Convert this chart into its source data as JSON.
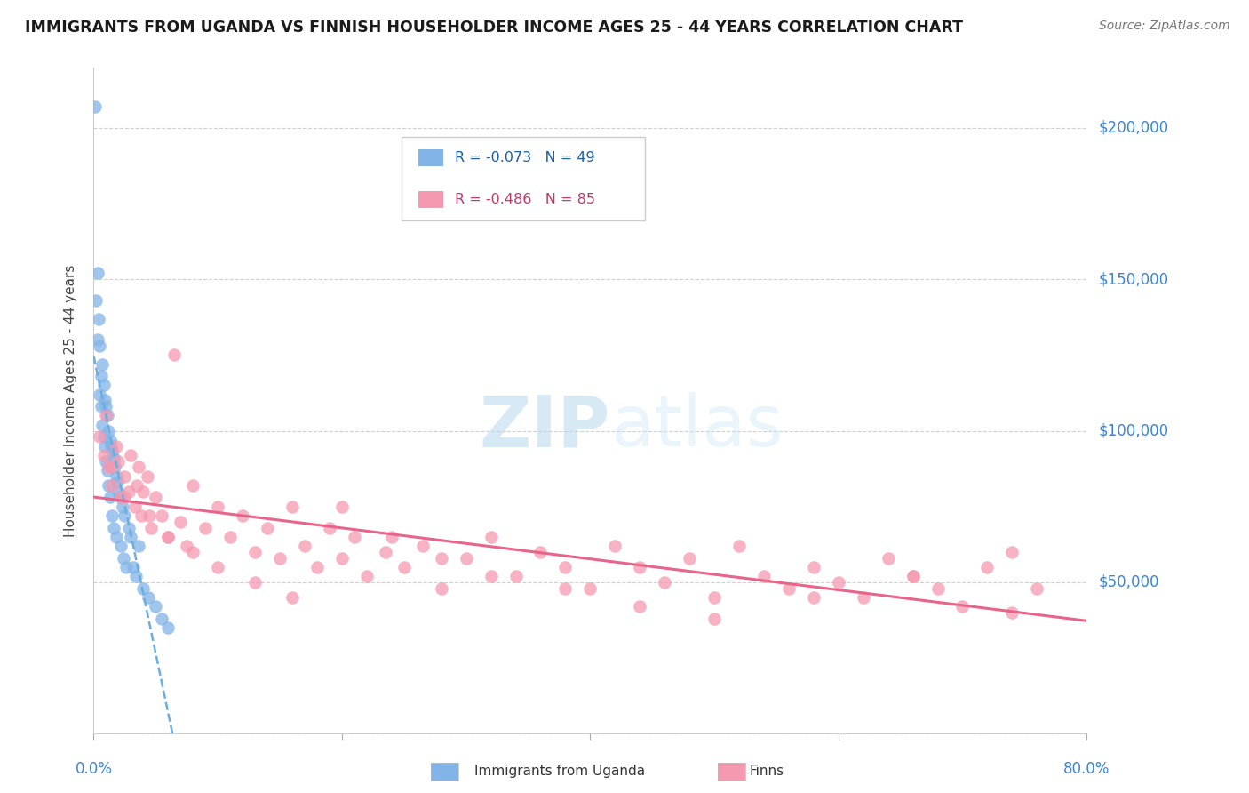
{
  "title": "IMMIGRANTS FROM UGANDA VS FINNISH HOUSEHOLDER INCOME AGES 25 - 44 YEARS CORRELATION CHART",
  "source": "Source: ZipAtlas.com",
  "ylabel": "Householder Income Ages 25 - 44 years",
  "r_uganda": -0.073,
  "n_uganda": 49,
  "r_finns": -0.486,
  "n_finns": 85,
  "color_uganda": "#82b4e8",
  "color_finns": "#f599b0",
  "line_color_uganda": "#6aaee0",
  "line_color_finns": "#e8648a",
  "background_color": "#ffffff",
  "watermark_zip": "ZIP",
  "watermark_atlas": "atlas",
  "xlim": [
    0.0,
    0.8
  ],
  "ylim": [
    0,
    220000
  ],
  "yticks": [
    0,
    50000,
    100000,
    150000,
    200000
  ],
  "uganda_x": [
    0.001,
    0.002,
    0.003,
    0.003,
    0.004,
    0.005,
    0.005,
    0.006,
    0.006,
    0.007,
    0.007,
    0.008,
    0.008,
    0.009,
    0.009,
    0.01,
    0.01,
    0.011,
    0.011,
    0.012,
    0.012,
    0.013,
    0.013,
    0.014,
    0.015,
    0.015,
    0.016,
    0.016,
    0.017,
    0.018,
    0.018,
    0.019,
    0.02,
    0.021,
    0.022,
    0.023,
    0.024,
    0.025,
    0.026,
    0.028,
    0.03,
    0.032,
    0.034,
    0.036,
    0.04,
    0.044,
    0.05,
    0.055,
    0.06
  ],
  "uganda_y": [
    207000,
    143000,
    152000,
    130000,
    137000,
    128000,
    112000,
    118000,
    108000,
    122000,
    102000,
    115000,
    98000,
    110000,
    95000,
    108000,
    90000,
    105000,
    87000,
    100000,
    82000,
    97000,
    78000,
    95000,
    93000,
    72000,
    91000,
    68000,
    88000,
    85000,
    65000,
    83000,
    80000,
    78000,
    62000,
    75000,
    58000,
    72000,
    55000,
    68000,
    65000,
    55000,
    52000,
    62000,
    48000,
    45000,
    42000,
    38000,
    35000
  ],
  "finns_x": [
    0.005,
    0.008,
    0.01,
    0.012,
    0.015,
    0.018,
    0.02,
    0.022,
    0.025,
    0.028,
    0.03,
    0.033,
    0.036,
    0.038,
    0.04,
    0.043,
    0.046,
    0.05,
    0.055,
    0.06,
    0.065,
    0.07,
    0.075,
    0.08,
    0.09,
    0.1,
    0.11,
    0.12,
    0.13,
    0.14,
    0.15,
    0.16,
    0.17,
    0.18,
    0.19,
    0.2,
    0.21,
    0.22,
    0.235,
    0.25,
    0.265,
    0.28,
    0.3,
    0.32,
    0.34,
    0.36,
    0.38,
    0.4,
    0.42,
    0.44,
    0.46,
    0.48,
    0.5,
    0.52,
    0.54,
    0.56,
    0.58,
    0.6,
    0.62,
    0.64,
    0.66,
    0.68,
    0.7,
    0.72,
    0.74,
    0.76,
    0.015,
    0.025,
    0.035,
    0.045,
    0.06,
    0.08,
    0.1,
    0.13,
    0.16,
    0.2,
    0.24,
    0.28,
    0.32,
    0.38,
    0.44,
    0.5,
    0.58,
    0.66,
    0.74
  ],
  "finns_y": [
    98000,
    92000,
    105000,
    88000,
    82000,
    95000,
    90000,
    78000,
    85000,
    80000,
    92000,
    75000,
    88000,
    72000,
    80000,
    85000,
    68000,
    78000,
    72000,
    65000,
    125000,
    70000,
    62000,
    82000,
    68000,
    75000,
    65000,
    72000,
    60000,
    68000,
    58000,
    75000,
    62000,
    55000,
    68000,
    58000,
    65000,
    52000,
    60000,
    55000,
    62000,
    48000,
    58000,
    65000,
    52000,
    60000,
    55000,
    48000,
    62000,
    55000,
    50000,
    58000,
    45000,
    62000,
    52000,
    48000,
    55000,
    50000,
    45000,
    58000,
    52000,
    48000,
    42000,
    55000,
    60000,
    48000,
    88000,
    78000,
    82000,
    72000,
    65000,
    60000,
    55000,
    50000,
    45000,
    75000,
    65000,
    58000,
    52000,
    48000,
    42000,
    38000,
    45000,
    52000,
    40000
  ]
}
